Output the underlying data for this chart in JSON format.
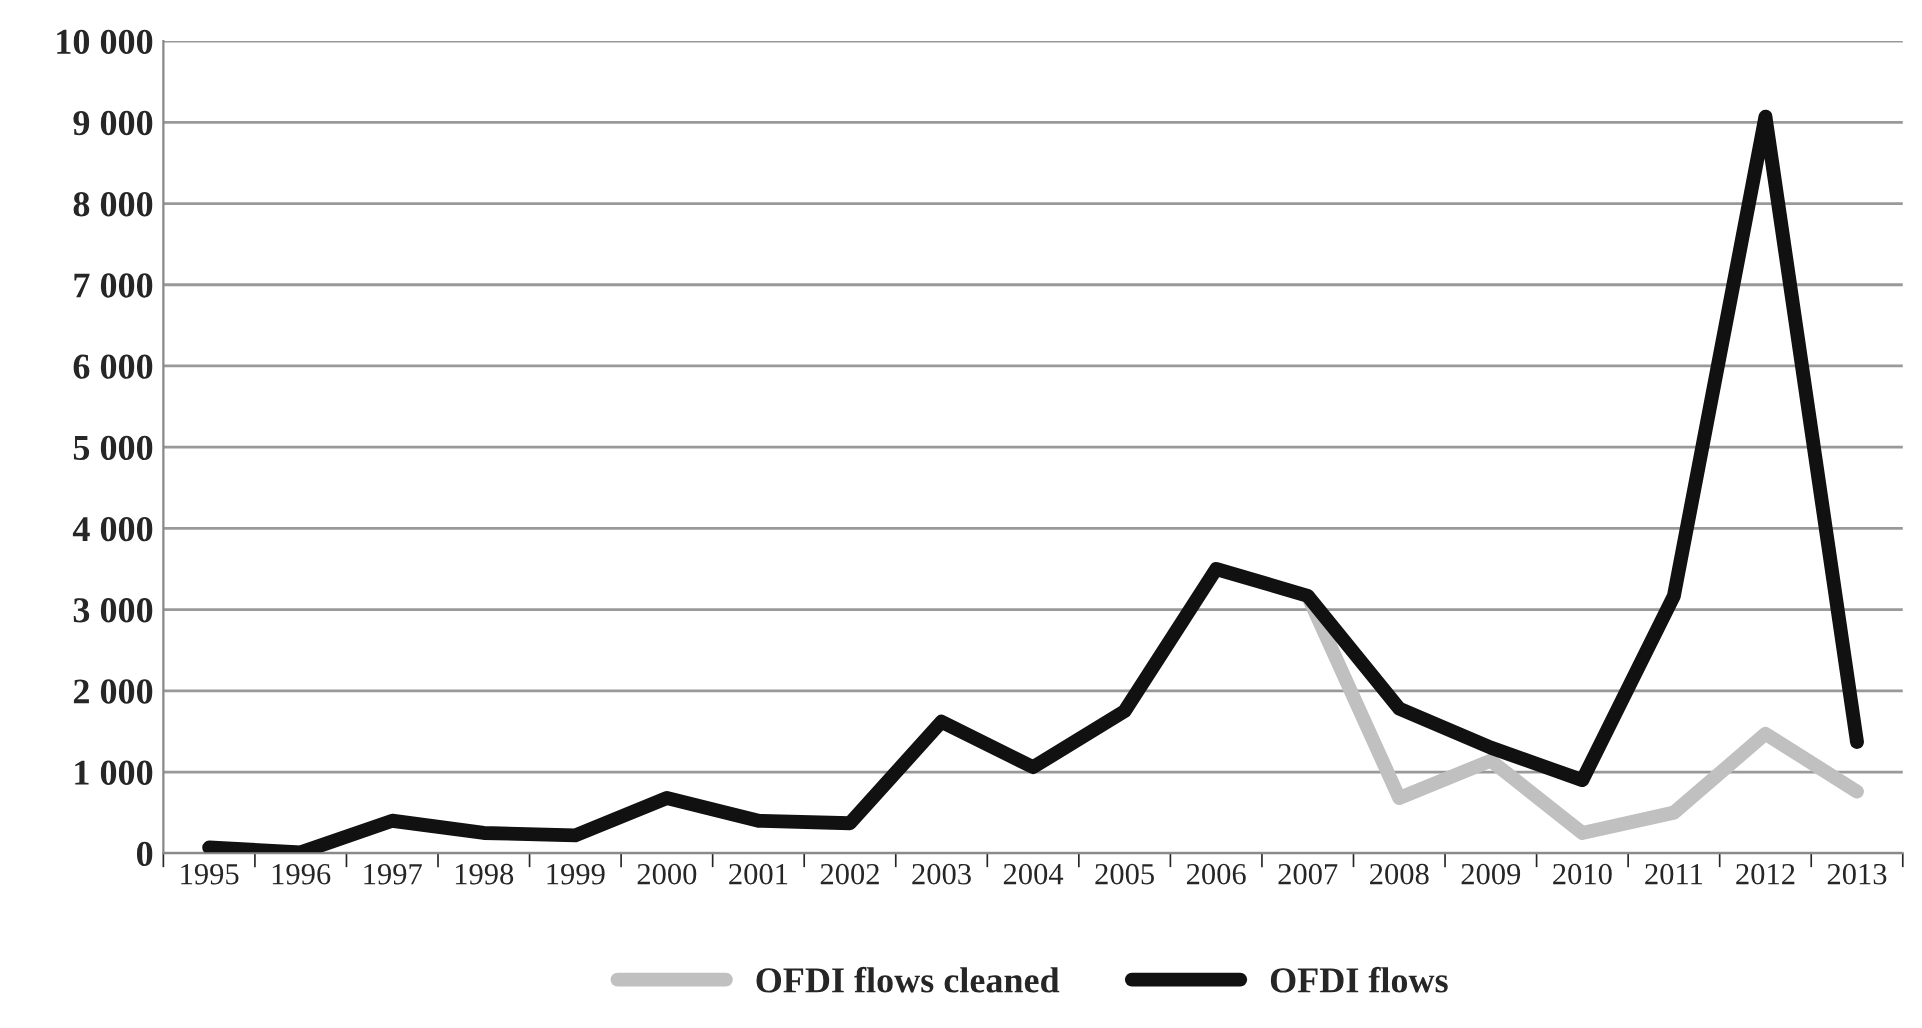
{
  "chart_data": {
    "type": "line",
    "categories": [
      "1995",
      "1996",
      "1997",
      "1998",
      "1999",
      "2000",
      "2001",
      "2002",
      "2003",
      "2004",
      "2005",
      "2006",
      "2007",
      "2008",
      "2009",
      "2010",
      "2011",
      "2012",
      "2013"
    ],
    "series": [
      {
        "name": "OFDI flows cleaned",
        "color": "#c0c0c0",
        "values": [
          null,
          null,
          null,
          null,
          null,
          null,
          null,
          null,
          null,
          null,
          null,
          null,
          3170,
          680,
          1140,
          250,
          500,
          1470,
          760
        ]
      },
      {
        "name": "OFDI flows",
        "color": "#111111",
        "values": [
          70,
          10,
          400,
          250,
          220,
          680,
          400,
          370,
          1620,
          1060,
          1750,
          3500,
          3170,
          1780,
          1300,
          900,
          3170,
          9070,
          1370
        ]
      }
    ],
    "ylim": [
      0,
      10000
    ],
    "yticks": [
      0,
      {
        "value": 1000,
        "label": "1 000"
      },
      {
        "value": 2000,
        "label": "2 000"
      },
      {
        "value": 3000,
        "label": "3 000"
      },
      {
        "value": 4000,
        "label": "4 000"
      },
      {
        "value": 5000,
        "label": "5 000"
      },
      {
        "value": 6000,
        "label": "6 000"
      },
      {
        "value": 7000,
        "label": "7 000"
      },
      {
        "value": 8000,
        "label": "8 000"
      },
      {
        "value": 9000,
        "label": "9 000"
      },
      {
        "value": 10000,
        "label": "10 000"
      }
    ],
    "grid": "y",
    "legend": "bottom",
    "marker": "none",
    "line_style": "solid"
  }
}
